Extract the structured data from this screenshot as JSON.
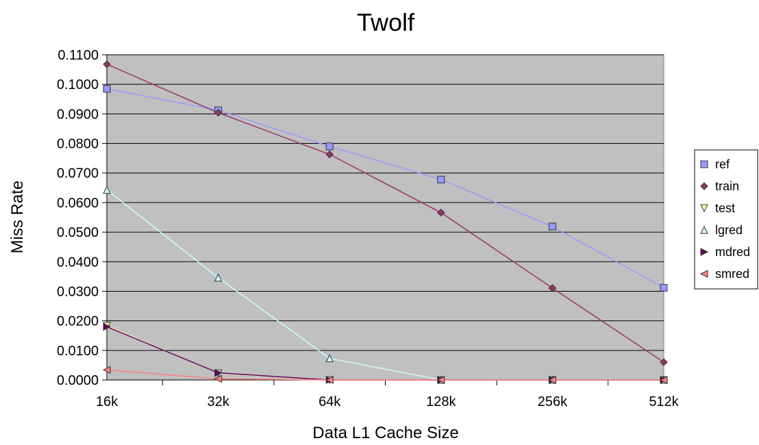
{
  "chart_data": {
    "type": "line",
    "title": "Twolf",
    "xlabel": "Data L1 Cache Size",
    "ylabel": "Miss Rate",
    "categories": [
      "16k",
      "32k",
      "64k",
      "128k",
      "256k",
      "512k"
    ],
    "ylim": [
      0,
      0.11
    ],
    "yticks": [
      "0.0000",
      "0.0100",
      "0.0200",
      "0.0300",
      "0.0400",
      "0.0500",
      "0.0600",
      "0.0700",
      "0.0800",
      "0.0900",
      "0.1000",
      "0.1100"
    ],
    "grid": true,
    "plot_background": "#c0c0c0",
    "legend_position": "right",
    "series": [
      {
        "name": "ref",
        "marker": "square",
        "color": "#9999ff",
        "values": [
          0.0985,
          0.0912,
          0.079,
          0.0678,
          0.0519,
          0.0312
        ]
      },
      {
        "name": "train",
        "marker": "diamond",
        "color": "#993366",
        "values": [
          0.1068,
          0.0904,
          0.0763,
          0.0566,
          0.0311,
          0.006
        ]
      },
      {
        "name": "test",
        "marker": "triangle-down",
        "color": "#ffff99",
        "values": [
          0.0183,
          0.0023,
          0.0,
          0.0,
          0.0,
          0.0
        ]
      },
      {
        "name": "lgred",
        "marker": "triangle-up",
        "color": "#ccffff",
        "values": [
          0.0643,
          0.0346,
          0.0073,
          0.0,
          0.0,
          0.0
        ]
      },
      {
        "name": "mdred",
        "marker": "triangle-right",
        "color": "#660066",
        "values": [
          0.018,
          0.0024,
          0.0,
          0.0,
          0.0,
          0.0
        ]
      },
      {
        "name": "smred",
        "marker": "triangle-left",
        "color": "#ff8080",
        "values": [
          0.0034,
          0.0004,
          0.0,
          0.0,
          0.0,
          0.0
        ]
      }
    ]
  }
}
